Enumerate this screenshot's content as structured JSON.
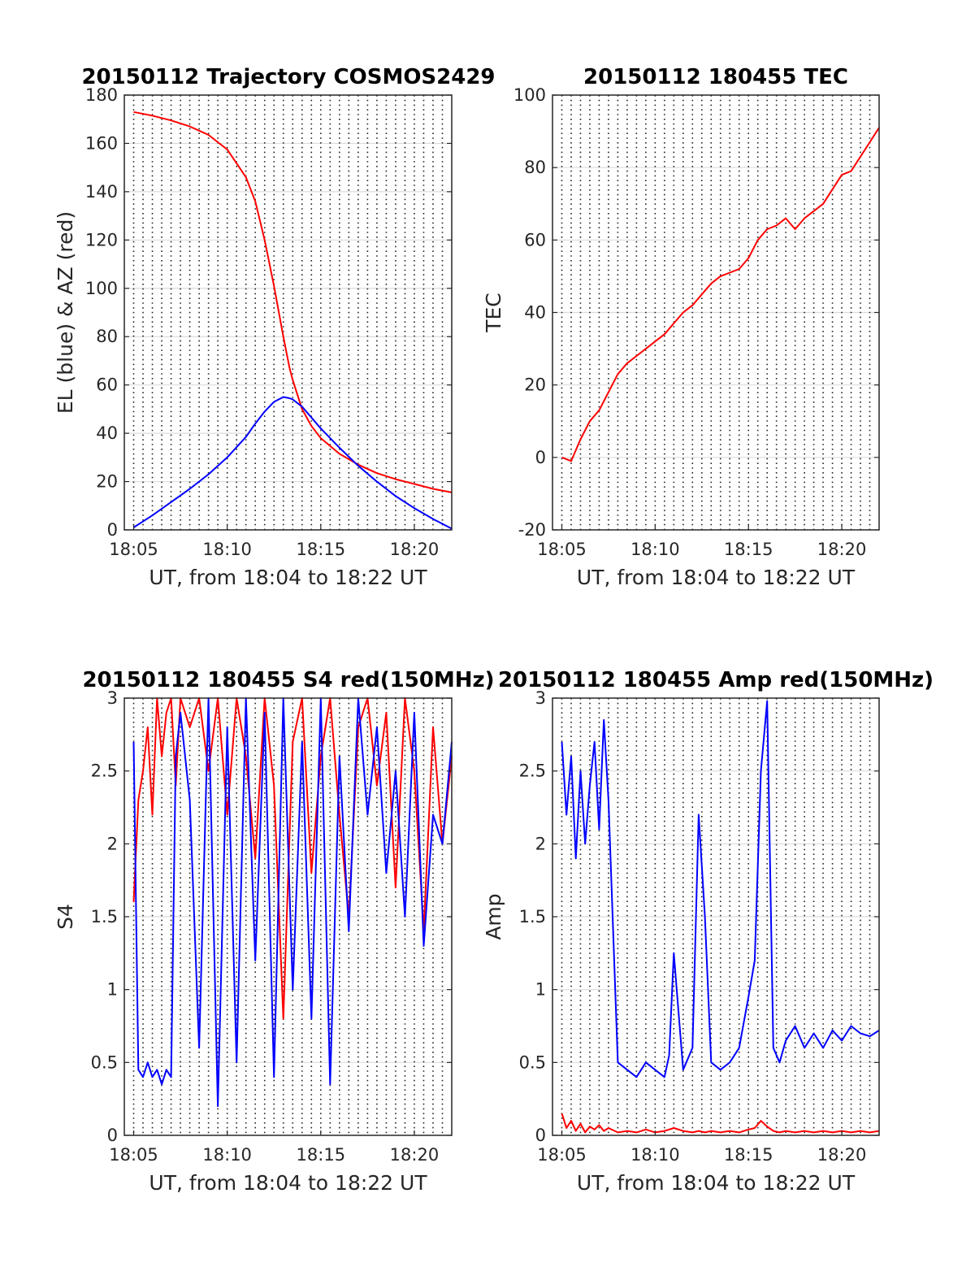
{
  "chart_data": [
    {
      "type": "line",
      "title": "20150112 Trajectory COSMOS2429",
      "xlabel": "UT, from 18:04 to 18:22 UT",
      "ylabel": "EL (blue) & AZ (red)",
      "xlim": [
        "18:04:30",
        "18:22:00"
      ],
      "ylim": [
        0,
        180
      ],
      "x_ticks": [
        "18:05",
        "18:10",
        "18:15",
        "18:20"
      ],
      "y_ticks": [
        "0",
        "20",
        "40",
        "60",
        "80",
        "100",
        "120",
        "140",
        "160",
        "180"
      ],
      "x": [
        "18:05",
        "18:06",
        "18:07",
        "18:08",
        "18:09",
        "18:10",
        "18:11",
        "18:11:30",
        "18:12",
        "18:12:30",
        "18:13",
        "18:13:20",
        "18:13:30",
        "18:14",
        "18:14:30",
        "18:15",
        "18:16",
        "18:17",
        "18:18",
        "18:19",
        "18:20",
        "18:21",
        "18:22"
      ],
      "series": [
        {
          "color": "#ff0000",
          "values": [
            173,
            171.5,
            169.5,
            167,
            163.5,
            157.5,
            146,
            136,
            120,
            101,
            80,
            67,
            62,
            50,
            43,
            38,
            31.5,
            27,
            23.5,
            21,
            19,
            17,
            15.5
          ]
        },
        {
          "color": "#0000ff",
          "values": [
            1,
            6,
            11.5,
            17,
            23,
            30,
            38.5,
            44,
            49,
            53,
            55,
            54.5,
            54,
            51,
            46.5,
            42,
            34,
            26.5,
            20,
            14,
            9,
            4.5,
            0.5
          ]
        }
      ]
    },
    {
      "type": "line",
      "title": "20150112 180455 TEC",
      "xlabel": "UT, from 18:04 to 18:22 UT",
      "ylabel": "TEC",
      "xlim": [
        "18:04:30",
        "18:22:00"
      ],
      "ylim": [
        -20,
        100
      ],
      "x_ticks": [
        "18:05",
        "18:10",
        "18:15",
        "18:20"
      ],
      "y_ticks": [
        "-20",
        "0",
        "20",
        "40",
        "60",
        "80",
        "100"
      ],
      "x": [
        "18:05",
        "18:05:30",
        "18:05:40",
        "18:06",
        "18:06:30",
        "18:07",
        "18:07:30",
        "18:08",
        "18:08:30",
        "18:09",
        "18:09:30",
        "18:10",
        "18:10:30",
        "18:11",
        "18:11:30",
        "18:12",
        "18:12:30",
        "18:13",
        "18:13:30",
        "18:14",
        "18:14:30",
        "18:15",
        "18:15:30",
        "18:16",
        "18:16:30",
        "18:17",
        "18:17:30",
        "18:18",
        "18:18:30",
        "18:19",
        "18:19:30",
        "18:20",
        "18:20:30",
        "18:21",
        "18:21:30",
        "18:22"
      ],
      "series": [
        {
          "color": "#ff0000",
          "values": [
            0,
            -1,
            1,
            5,
            10,
            13,
            18,
            23,
            26,
            28,
            30,
            32,
            34,
            37,
            40,
            42,
            45,
            48,
            50,
            51,
            52,
            55,
            60,
            63,
            64,
            66,
            63,
            66,
            68,
            70,
            74,
            78,
            79,
            83,
            87,
            91
          ]
        }
      ]
    },
    {
      "type": "line",
      "title": "20150112 180455 S4 red(150MHz)",
      "xlabel": "UT, from 18:04 to 18:22 UT",
      "ylabel": "S4",
      "xlim": [
        "18:04:30",
        "18:22:00"
      ],
      "ylim": [
        0,
        3
      ],
      "x_ticks": [
        "18:05",
        "18:10",
        "18:15",
        "18:20"
      ],
      "y_ticks": [
        "0",
        "0.5",
        "1",
        "1.5",
        "2",
        "2.5",
        "3"
      ],
      "x": [
        "18:05",
        "18:05:15",
        "18:05:30",
        "18:05:45",
        "18:06",
        "18:06:15",
        "18:06:30",
        "18:06:45",
        "18:07",
        "18:07:15",
        "18:07:30",
        "18:08",
        "18:08:30",
        "18:09",
        "18:09:30",
        "18:10",
        "18:10:30",
        "18:11",
        "18:11:30",
        "18:12",
        "18:12:30",
        "18:13",
        "18:13:30",
        "18:14",
        "18:14:30",
        "18:15",
        "18:15:30",
        "18:16",
        "18:16:30",
        "18:17",
        "18:17:30",
        "18:18",
        "18:18:30",
        "18:19",
        "18:19:30",
        "18:20",
        "18:20:30",
        "18:21",
        "18:21:30",
        "18:22"
      ],
      "series": [
        {
          "color": "#ff0000",
          "values": [
            1.6,
            2.3,
            2.5,
            2.8,
            2.2,
            3.0,
            2.6,
            2.9,
            3.0,
            2.4,
            3.0,
            2.8,
            3.0,
            2.5,
            3.0,
            2.2,
            3.0,
            2.6,
            1.9,
            3.0,
            2.4,
            0.8,
            2.7,
            3.0,
            1.8,
            2.6,
            3.0,
            2.2,
            1.5,
            2.8,
            3.0,
            2.4,
            2.9,
            1.7,
            3.0,
            2.5,
            1.4,
            2.8,
            2.0,
            2.6
          ]
        },
        {
          "color": "#0000ff",
          "values": [
            2.7,
            0.45,
            0.4,
            0.5,
            0.4,
            0.45,
            0.35,
            0.45,
            0.4,
            2.6,
            2.9,
            2.3,
            0.6,
            3.0,
            0.2,
            2.8,
            0.5,
            3.0,
            1.2,
            2.9,
            0.4,
            3.0,
            1.0,
            2.7,
            0.8,
            3.0,
            0.35,
            2.6,
            1.4,
            3.0,
            2.2,
            2.8,
            1.8,
            2.5,
            1.5,
            2.9,
            1.3,
            2.2,
            2.0,
            2.7
          ]
        }
      ]
    },
    {
      "type": "line",
      "title": "20150112 180455 Amp red(150MHz)",
      "xlabel": "UT, from 18:04 to 18:22 UT",
      "ylabel": "Amp",
      "xlim": [
        "18:04:30",
        "18:22:00"
      ],
      "ylim": [
        0,
        3
      ],
      "x_ticks": [
        "18:05",
        "18:10",
        "18:15",
        "18:20"
      ],
      "y_ticks": [
        "0",
        "0.5",
        "1",
        "1.5",
        "2",
        "2.5",
        "3"
      ],
      "x": [
        "18:05",
        "18:05:15",
        "18:05:30",
        "18:05:45",
        "18:06",
        "18:06:15",
        "18:06:30",
        "18:06:45",
        "18:07",
        "18:07:15",
        "18:07:30",
        "18:08",
        "18:08:30",
        "18:09",
        "18:09:30",
        "18:10",
        "18:10:30",
        "18:10:45",
        "18:11",
        "18:11:30",
        "18:12",
        "18:12:20",
        "18:12:40",
        "18:13",
        "18:13:30",
        "18:14",
        "18:14:30",
        "18:15",
        "18:15:20",
        "18:15:40",
        "18:16",
        "18:16:20",
        "18:16:40",
        "18:17",
        "18:17:30",
        "18:18",
        "18:18:30",
        "18:19",
        "18:19:30",
        "18:20",
        "18:20:30",
        "18:21",
        "18:21:30",
        "18:22"
      ],
      "series": [
        {
          "color": "#ff0000",
          "values": [
            0.15,
            0.05,
            0.1,
            0.03,
            0.08,
            0.02,
            0.06,
            0.04,
            0.07,
            0.03,
            0.05,
            0.02,
            0.03,
            0.02,
            0.04,
            0.02,
            0.03,
            0.04,
            0.05,
            0.03,
            0.02,
            0.03,
            0.02,
            0.03,
            0.02,
            0.03,
            0.02,
            0.04,
            0.05,
            0.1,
            0.06,
            0.03,
            0.02,
            0.03,
            0.02,
            0.03,
            0.02,
            0.03,
            0.02,
            0.03,
            0.02,
            0.03,
            0.02,
            0.03
          ]
        },
        {
          "color": "#0000ff",
          "values": [
            2.7,
            2.2,
            2.6,
            1.9,
            2.5,
            2.0,
            2.4,
            2.7,
            2.1,
            2.85,
            2.3,
            0.5,
            0.45,
            0.4,
            0.5,
            0.45,
            0.4,
            0.55,
            1.25,
            0.45,
            0.6,
            2.2,
            1.5,
            0.5,
            0.45,
            0.5,
            0.6,
            0.95,
            1.2,
            2.5,
            2.98,
            0.6,
            0.5,
            0.65,
            0.75,
            0.6,
            0.7,
            0.6,
            0.72,
            0.65,
            0.75,
            0.7,
            0.68,
            0.72
          ]
        }
      ]
    }
  ]
}
